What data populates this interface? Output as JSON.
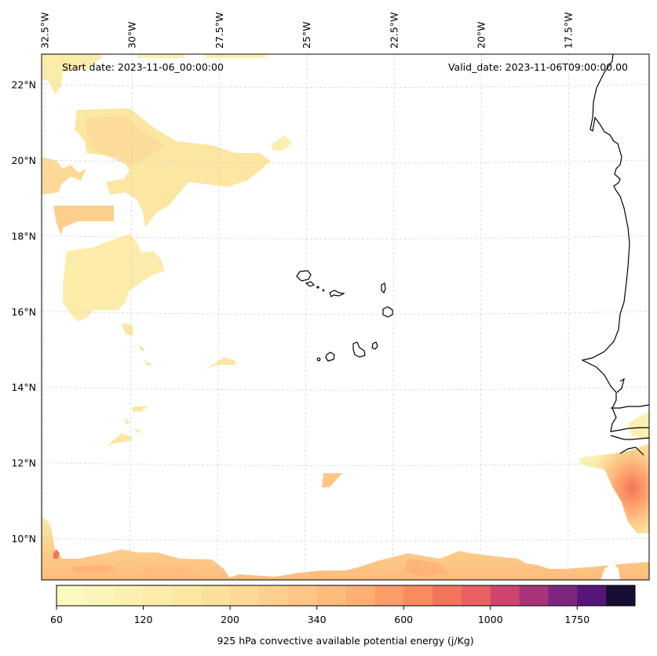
{
  "chart_data": {
    "type": "heatmap",
    "title": "",
    "variable": "925 hPa convective available potential energy (j/Kg)",
    "annotations": {
      "start_date": "Start date: 2023-11-06_00:00:00",
      "valid_date": "Valid_date: 2023-11-06T09:00:00.00"
    },
    "lon_ticks": [
      "32.5°W",
      "30°W",
      "27.5°W",
      "25°W",
      "22.5°W",
      "20°W",
      "17.5°W"
    ],
    "lon_values": [
      -32.5,
      -30,
      -27.5,
      -25,
      -22.5,
      -20,
      -17.5
    ],
    "lat_ticks": [
      "22°N",
      "20°N",
      "18°N",
      "16°N",
      "14°N",
      "12°N",
      "10°N"
    ],
    "lat_values": [
      22,
      20,
      18,
      16,
      14,
      12,
      10
    ],
    "extent": {
      "lon": [
        -32.6,
        -15.2
      ],
      "lat": [
        8.9,
        22.8
      ]
    },
    "grid": true,
    "colorbar": {
      "label": "925 hPa convective available potential energy (j/Kg)",
      "placement": "bottom",
      "tick_labels": [
        "60",
        "120",
        "200",
        "340",
        "600",
        "1000",
        "1750"
      ],
      "tick_bin_index": [
        0,
        3,
        6,
        9,
        12,
        15,
        18
      ],
      "levels_count": 20,
      "colors": [
        "#fcf9c0",
        "#fbf4b8",
        "#fbf0b1",
        "#fbecaa",
        "#fbe6a2",
        "#fbe09c",
        "#fcd996",
        "#fdcf8d",
        "#fec686",
        "#febb7c",
        "#feaf74",
        "#fd9d69",
        "#fb8b5f",
        "#f4745b",
        "#ea5f5f",
        "#d04470",
        "#a83379",
        "#7e267f",
        "#561679",
        "#160f33"
      ]
    },
    "fields": [
      {
        "region": "NW Atlantic cluster near 30-26W, 19-21N",
        "approx_value_range": [
          60,
          200
        ]
      },
      {
        "region": "Western edge 32.5W, 18-20N",
        "approx_value_range": [
          80,
          250
        ]
      },
      {
        "region": "Southwest patches 31-29W, 15.8-17.5N",
        "approx_value_range": [
          60,
          120
        ]
      },
      {
        "region": "Southern band along 9-9.5N",
        "approx_value_range": [
          80,
          400
        ]
      },
      {
        "region": "Guinea-Bissau coast near 16W, 11N",
        "approx_value_range": [
          200,
          800
        ]
      },
      {
        "region": "Small patch near 25W, 11.5N",
        "approx_value_range": [
          200,
          340
        ]
      }
    ],
    "features": [
      "Cape Verde islands",
      "West African coastline (Mauritania, Senegal, Gambia, Guinea-Bissau)"
    ]
  }
}
